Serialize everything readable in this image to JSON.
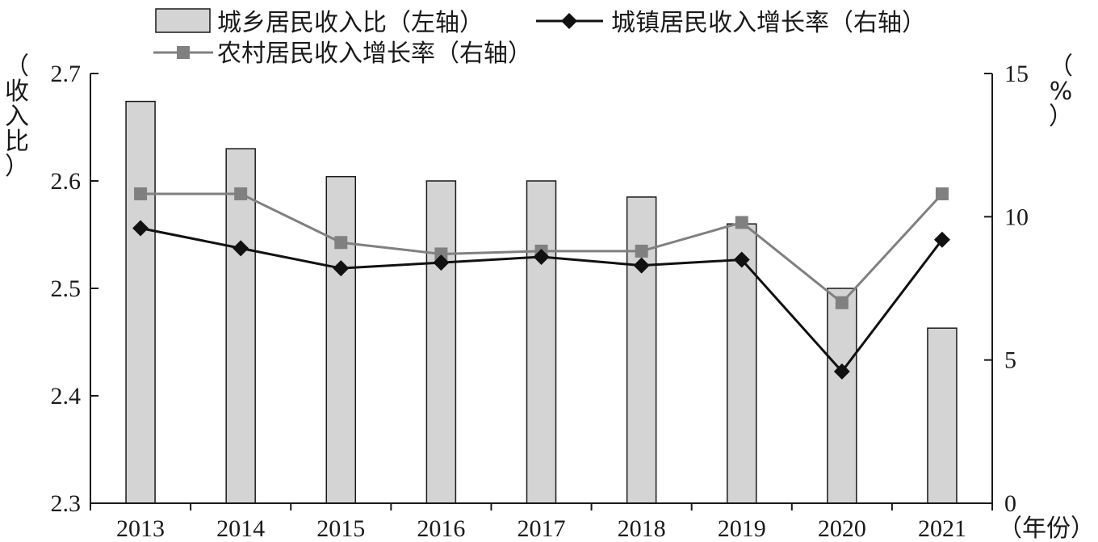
{
  "chart_data": {
    "type": "bar",
    "categories": [
      "2013",
      "2014",
      "2015",
      "2016",
      "2017",
      "2018",
      "2019",
      "2020",
      "2021"
    ],
    "series": [
      {
        "name": "城乡居民收入比（左轴）",
        "type": "bar",
        "axis": "left",
        "color": "#d4d4d4",
        "values": [
          2.674,
          2.63,
          2.604,
          2.6,
          2.6,
          2.585,
          2.56,
          2.5,
          2.463
        ]
      },
      {
        "name": "城镇居民收入增长率（右轴）",
        "type": "line",
        "axis": "right",
        "marker": "diamond",
        "color": "#111111",
        "values": [
          9.6,
          8.9,
          8.2,
          8.4,
          8.6,
          8.3,
          8.5,
          4.6,
          9.2
        ]
      },
      {
        "name": "农村居民收入增长率（右轴）",
        "type": "line",
        "axis": "right",
        "marker": "square",
        "color": "#808080",
        "values": [
          10.8,
          10.8,
          9.1,
          8.7,
          8.8,
          8.8,
          9.8,
          7.0,
          10.8
        ]
      }
    ],
    "ylabel_left": "（收入比）",
    "ylabel_right": "（%）",
    "xlabel": "（年份）",
    "ylim_left": [
      2.3,
      2.7
    ],
    "yticks_left": [
      "2.3",
      "2.4",
      "2.5",
      "2.6",
      "2.7"
    ],
    "ylim_right": [
      0,
      15
    ],
    "yticks_right": [
      "0",
      "5",
      "10",
      "15"
    ],
    "grid": false,
    "legend_position": "top"
  }
}
